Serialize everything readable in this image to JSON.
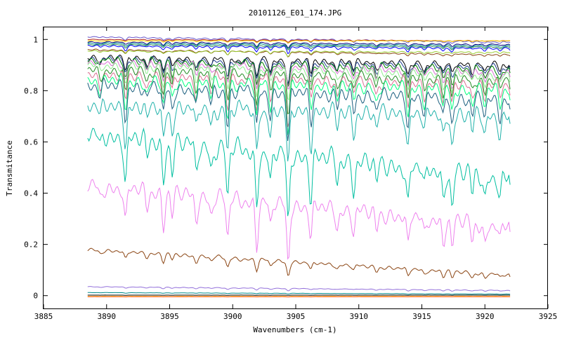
{
  "chart_data": {
    "type": "line",
    "title": "20101126_E01_174.JPG",
    "xlabel": "Wavenumbers (cm-1)",
    "ylabel": "Transmitance",
    "xlim": [
      3885,
      3925
    ],
    "ylim": [
      -0.05,
      1.05
    ],
    "xticks": [
      {
        "value": 3885,
        "label": "3885"
      },
      {
        "value": 3890,
        "label": "3890"
      },
      {
        "value": 3895,
        "label": "3895"
      },
      {
        "value": 3900,
        "label": "3900"
      },
      {
        "value": 3905,
        "label": "3905"
      },
      {
        "value": 3910,
        "label": "3910"
      },
      {
        "value": 3915,
        "label": "3915"
      },
      {
        "value": 3920,
        "label": "3920"
      },
      {
        "value": 3925,
        "label": "3925"
      }
    ],
    "yticks": [
      {
        "value": 0,
        "label": "0"
      },
      {
        "value": 0.2,
        "label": "0.2"
      },
      {
        "value": 0.4,
        "label": "0.4"
      },
      {
        "value": 0.6,
        "label": "0.6"
      },
      {
        "value": 0.8,
        "label": "0.8"
      },
      {
        "value": 1,
        "label": "1"
      }
    ],
    "grid": false,
    "legend": "none",
    "x_range": [
      3888.5,
      3922
    ],
    "absorption_lines": [
      {
        "x": 3889.5,
        "depth": 0.2
      },
      {
        "x": 3891.5,
        "depth": 0.6
      },
      {
        "x": 3893.2,
        "depth": 0.25
      },
      {
        "x": 3894.5,
        "depth": 0.55
      },
      {
        "x": 3895.2,
        "depth": 0.4
      },
      {
        "x": 3897.1,
        "depth": 0.4
      },
      {
        "x": 3898.3,
        "depth": 0.3
      },
      {
        "x": 3899.6,
        "depth": 0.7
      },
      {
        "x": 3901.9,
        "depth": 0.75
      },
      {
        "x": 3903.0,
        "depth": 0.45
      },
      {
        "x": 3904.4,
        "depth": 1.0
      },
      {
        "x": 3906.2,
        "depth": 0.55
      },
      {
        "x": 3908.3,
        "depth": 0.3
      },
      {
        "x": 3909.6,
        "depth": 0.35
      },
      {
        "x": 3911.4,
        "depth": 0.3
      },
      {
        "x": 3913.9,
        "depth": 0.55
      },
      {
        "x": 3915.2,
        "depth": 0.3
      },
      {
        "x": 3916.7,
        "depth": 0.4
      },
      {
        "x": 3917.4,
        "depth": 0.5
      },
      {
        "x": 3919.0,
        "depth": 0.3
      },
      {
        "x": 3920.0,
        "depth": 0.35
      },
      {
        "x": 3921.2,
        "depth": 0.3
      }
    ],
    "series": [
      {
        "color": "#6a5acd",
        "start": 1.01,
        "end": 0.99,
        "strength": 0.02
      },
      {
        "color": "#b22222",
        "start": 1.0,
        "end": 0.995,
        "strength": 0.01
      },
      {
        "color": "#ffd700",
        "start": 0.995,
        "end": 0.995,
        "strength": 0.01
      },
      {
        "color": "#000080",
        "start": 0.99,
        "end": 0.98,
        "strength": 0.02
      },
      {
        "color": "#008b8b",
        "start": 0.985,
        "end": 0.975,
        "strength": 0.02
      },
      {
        "color": "#2e8b57",
        "start": 0.98,
        "end": 0.97,
        "strength": 0.02
      },
      {
        "color": "#0000ff",
        "start": 0.975,
        "end": 0.965,
        "strength": 0.03
      },
      {
        "color": "#8b4513",
        "start": 0.96,
        "end": 0.94,
        "strength": 0.02
      },
      {
        "color": "#9acd32",
        "start": 0.955,
        "end": 0.95,
        "strength": 0.02
      },
      {
        "color": "#000000",
        "start": 0.93,
        "end": 0.9,
        "strength": 0.1
      },
      {
        "color": "#1f3f8f",
        "start": 0.925,
        "end": 0.89,
        "strength": 0.1
      },
      {
        "color": "#008000",
        "start": 0.92,
        "end": 0.88,
        "strength": 0.12
      },
      {
        "color": "#da70d6",
        "start": 0.91,
        "end": 0.87,
        "strength": 0.12
      },
      {
        "color": "#90ee90",
        "start": 0.9,
        "end": 0.86,
        "strength": 0.14
      },
      {
        "color": "#228b22",
        "start": 0.88,
        "end": 0.84,
        "strength": 0.16
      },
      {
        "color": "#db7093",
        "start": 0.86,
        "end": 0.82,
        "strength": 0.18
      },
      {
        "color": "#00ff7f",
        "start": 0.84,
        "end": 0.8,
        "strength": 0.2
      },
      {
        "color": "#1c5f7f",
        "start": 0.82,
        "end": 0.76,
        "strength": 0.22
      },
      {
        "color": "#20b2aa",
        "start": 0.74,
        "end": 0.7,
        "strength": 0.26
      },
      {
        "color": "#00bfa0",
        "start": 0.63,
        "end": 0.46,
        "strength": 0.32
      },
      {
        "color": "#ee82ee",
        "start": 0.43,
        "end": 0.27,
        "strength": 0.26
      },
      {
        "color": "#8b4513",
        "start": 0.18,
        "end": 0.08,
        "strength": 0.06
      },
      {
        "color": "#9370db",
        "start": 0.035,
        "end": 0.02,
        "strength": 0.01
      },
      {
        "color": "#008b8b",
        "start": 0.012,
        "end": 0.006,
        "strength": 0.003
      },
      {
        "color": "#000000",
        "start": 0.002,
        "end": 0.002,
        "strength": 0.001
      },
      {
        "color": "#ffd700",
        "start": -0.003,
        "end": -0.003,
        "strength": 0.002
      },
      {
        "color": "#ff4500",
        "start": -0.004,
        "end": -0.004,
        "strength": 0.001
      }
    ]
  }
}
